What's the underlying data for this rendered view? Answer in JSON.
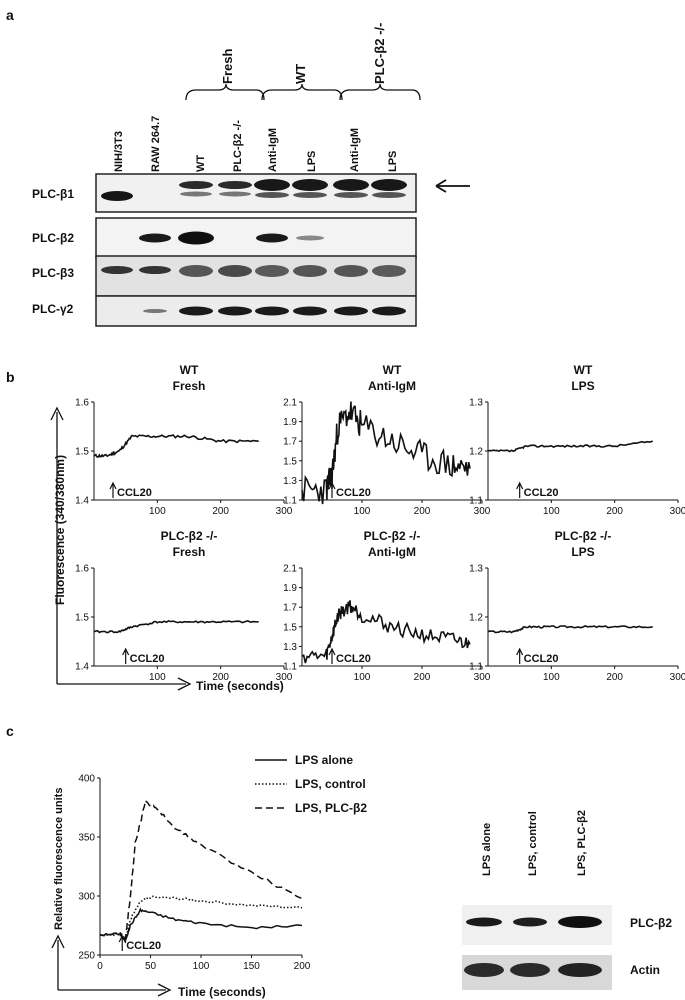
{
  "panels": {
    "a": "a",
    "b": "b",
    "c": "c"
  },
  "blot_a": {
    "lanes": [
      "NIH/3T3",
      "RAW 264.7",
      "WT",
      "PLC-β2 -/-",
      "Anti-IgM",
      "LPS",
      "Anti-IgM",
      "LPS"
    ],
    "groups": [
      "Fresh",
      "WT",
      "PLC-β2 -/-"
    ],
    "rows": [
      "PLC-β1",
      "PLC-β2",
      "PLC-β3",
      "PLC-γ2"
    ]
  },
  "panel_b": {
    "ylabel": "Fluorescence (340/380nm)",
    "xlabel": "Time (seconds)",
    "annotation": "CCL20"
  },
  "panel_c": {
    "annotation": "CCL20",
    "blot_lanes": [
      "LPS alone",
      "LPS, control",
      "LPS, PLC-β2"
    ],
    "blot_rows": [
      "PLC-β2",
      "Actin"
    ]
  },
  "chart_data": [
    {
      "type": "line",
      "title": "WT\nFresh",
      "xlim": [
        0,
        300
      ],
      "ylim": [
        1.4,
        1.6
      ],
      "xticks": [
        100,
        200,
        300
      ],
      "yticks": [
        1.4,
        1.5,
        1.6
      ],
      "series": [
        {
          "x": [
            0,
            20,
            40,
            60,
            100,
            150,
            200,
            260
          ],
          "y": [
            1.49,
            1.49,
            1.5,
            1.53,
            1.53,
            1.53,
            1.52,
            1.52
          ]
        }
      ]
    },
    {
      "type": "line",
      "title": "WT\nAnti-IgM",
      "xlim": [
        0,
        300
      ],
      "ylim": [
        1.1,
        2.1
      ],
      "xticks": [
        100,
        200,
        300
      ],
      "yticks": [
        1.1,
        1.3,
        1.5,
        1.7,
        1.9,
        2.1
      ],
      "series": [
        {
          "x": [
            0,
            40,
            50,
            60,
            80,
            100,
            150,
            200,
            250,
            280
          ],
          "y": [
            1.2,
            1.2,
            1.35,
            1.85,
            2.0,
            1.85,
            1.7,
            1.55,
            1.45,
            1.42
          ]
        }
      ]
    },
    {
      "type": "line",
      "title": "WT\nLPS",
      "xlim": [
        0,
        300
      ],
      "ylim": [
        1.1,
        1.3
      ],
      "xticks": [
        100,
        200,
        300
      ],
      "yticks": [
        1.1,
        1.2,
        1.3
      ],
      "series": [
        {
          "x": [
            0,
            40,
            60,
            100,
            150,
            200,
            260
          ],
          "y": [
            1.2,
            1.2,
            1.21,
            1.21,
            1.21,
            1.21,
            1.22
          ]
        }
      ]
    },
    {
      "type": "line",
      "title": "PLC-β2 -/-\nFresh",
      "xlim": [
        0,
        300
      ],
      "ylim": [
        1.4,
        1.6
      ],
      "xticks": [
        100,
        200,
        300
      ],
      "yticks": [
        1.4,
        1.5,
        1.6
      ],
      "series": [
        {
          "x": [
            0,
            40,
            60,
            100,
            150,
            200,
            260
          ],
          "y": [
            1.47,
            1.47,
            1.48,
            1.49,
            1.49,
            1.49,
            1.49
          ]
        }
      ]
    },
    {
      "type": "line",
      "title": "PLC-β2 -/-\nAnti-IgM",
      "xlim": [
        0,
        300
      ],
      "ylim": [
        1.1,
        2.1
      ],
      "xticks": [
        100,
        200,
        300
      ],
      "yticks": [
        1.1,
        1.3,
        1.5,
        1.7,
        1.9,
        2.1
      ],
      "series": [
        {
          "x": [
            0,
            40,
            50,
            60,
            80,
            100,
            150,
            200,
            250,
            280
          ],
          "y": [
            1.2,
            1.2,
            1.4,
            1.62,
            1.72,
            1.62,
            1.5,
            1.42,
            1.37,
            1.32
          ]
        }
      ]
    },
    {
      "type": "line",
      "title": "PLC-β2 -/-\nLPS",
      "xlim": [
        0,
        300
      ],
      "ylim": [
        1.1,
        1.3
      ],
      "xticks": [
        100,
        200,
        300
      ],
      "yticks": [
        1.1,
        1.2,
        1.3
      ],
      "series": [
        {
          "x": [
            0,
            40,
            60,
            100,
            150,
            200,
            260
          ],
          "y": [
            1.17,
            1.17,
            1.18,
            1.18,
            1.18,
            1.18,
            1.18
          ]
        }
      ]
    },
    {
      "type": "line",
      "title": "",
      "xlabel": "Time (seconds)",
      "ylabel": "Relative fluorescence units",
      "xlim": [
        0,
        200
      ],
      "ylim": [
        250,
        400
      ],
      "xticks": [
        0,
        50,
        100,
        150,
        200
      ],
      "yticks": [
        250,
        300,
        350,
        400
      ],
      "legend": "top-right",
      "series": [
        {
          "name": "LPS alone",
          "dash": "solid",
          "x": [
            0,
            20,
            25,
            30,
            40,
            50,
            75,
            100,
            150,
            200
          ],
          "y": [
            267,
            268,
            262,
            275,
            288,
            286,
            280,
            277,
            273,
            275
          ]
        },
        {
          "name": "LPS, control",
          "dash": "dotted",
          "x": [
            0,
            20,
            25,
            30,
            40,
            50,
            75,
            100,
            150,
            200
          ],
          "y": [
            267,
            268,
            262,
            280,
            295,
            299,
            298,
            296,
            292,
            290
          ]
        },
        {
          "name": "LPS, PLC-β2",
          "dash": "dashed",
          "x": [
            0,
            20,
            25,
            30,
            35,
            45,
            55,
            75,
            100,
            150,
            200
          ],
          "y": [
            267,
            268,
            262,
            300,
            345,
            380,
            375,
            357,
            343,
            320,
            298
          ]
        }
      ]
    }
  ]
}
